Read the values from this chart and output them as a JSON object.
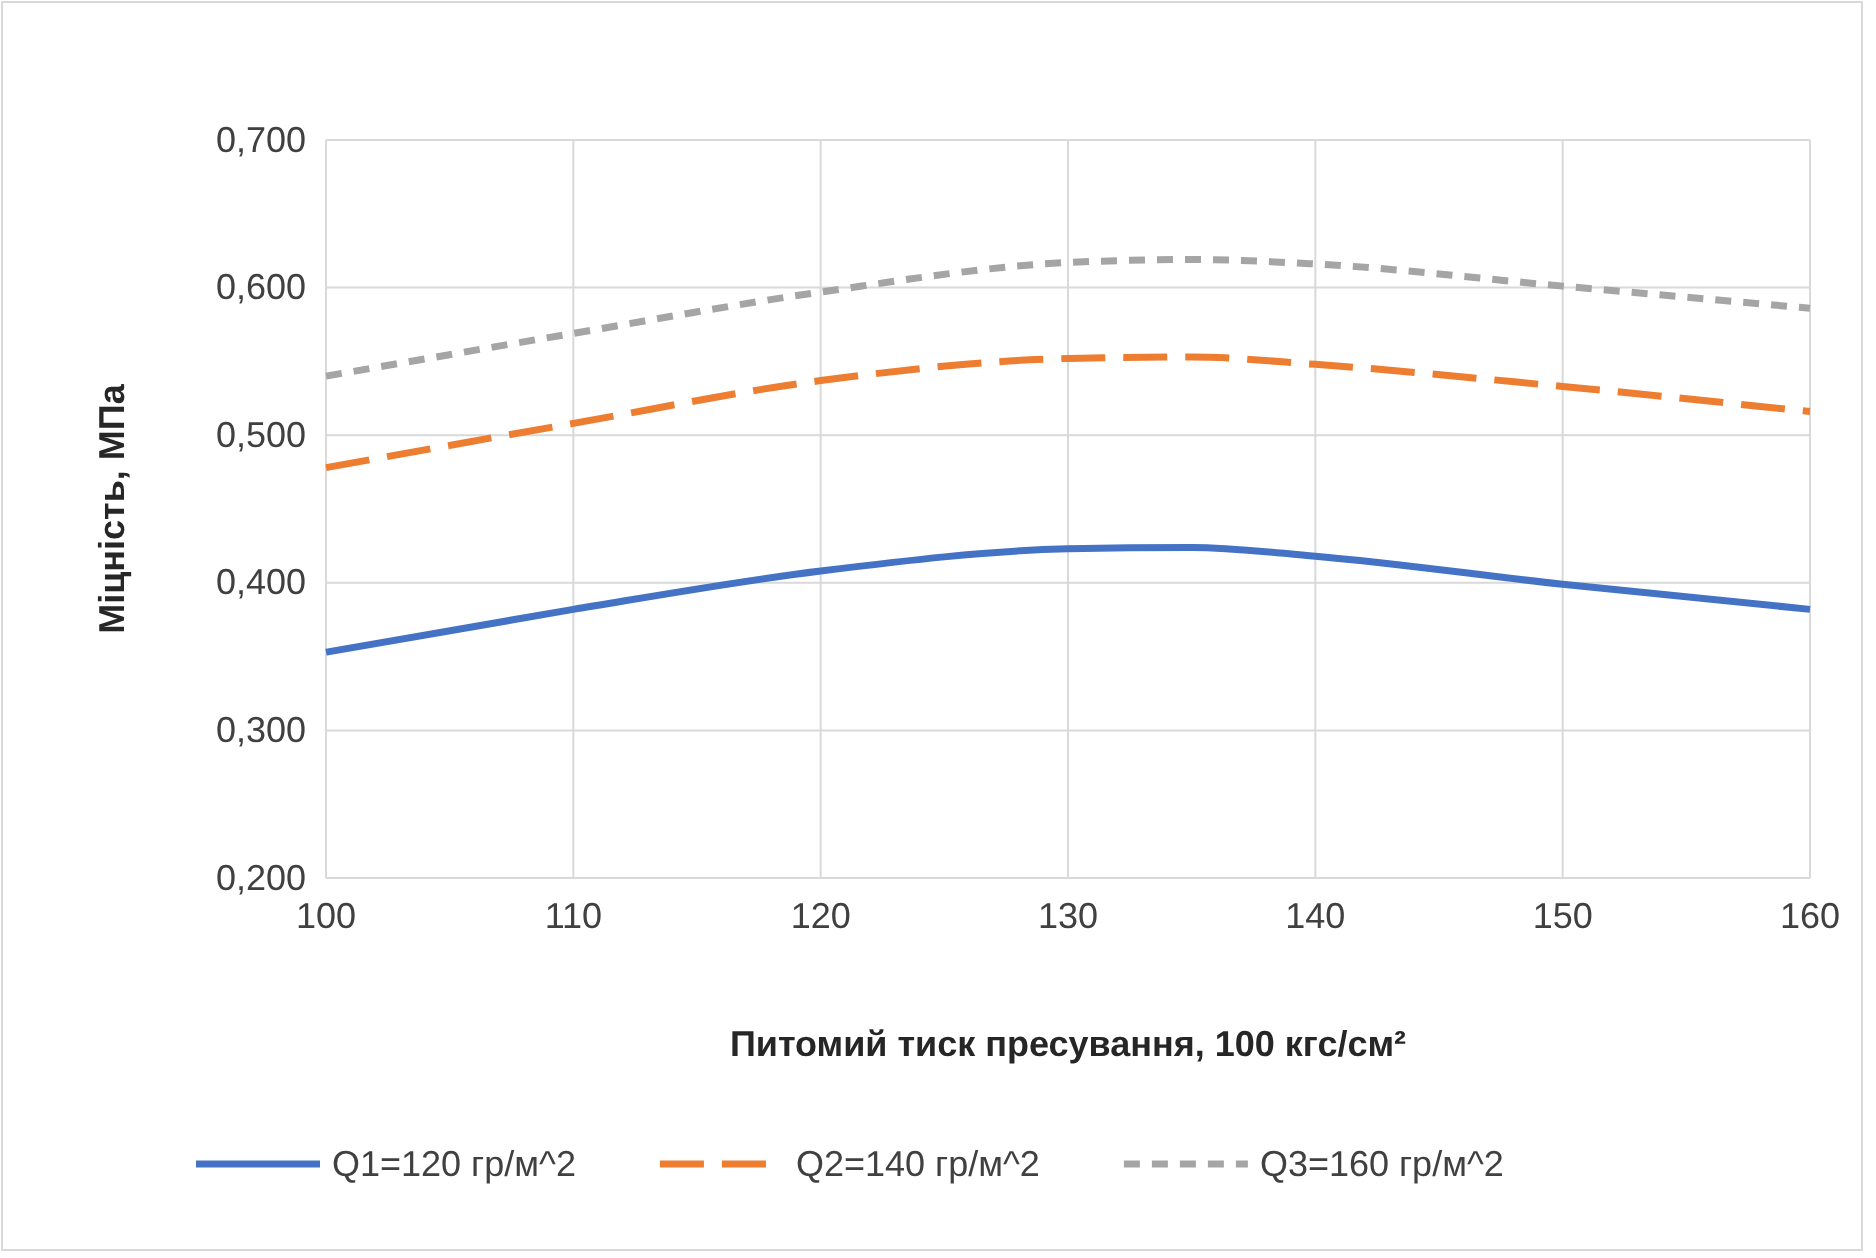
{
  "chart_data": {
    "type": "line",
    "xlabel": "Питомий тиск пресування,  100 кгс/см²",
    "ylabel": "Міцність, МПа",
    "x": [
      100,
      110,
      120,
      130,
      135,
      140,
      150,
      160
    ],
    "series": [
      {
        "name": "Q1=120 гр/м^2",
        "color": "#4472c4",
        "line_style": "solid",
        "values": [
          0.353,
          0.382,
          0.408,
          0.423,
          0.424,
          0.418,
          0.399,
          0.382
        ]
      },
      {
        "name": "Q2=140 гр/м^2",
        "color": "#ed7d31",
        "line_style": "dashed",
        "values": [
          0.478,
          0.508,
          0.537,
          0.552,
          0.553,
          0.548,
          0.533,
          0.516
        ]
      },
      {
        "name": "Q3=160 гр/м^2",
        "color": "#a5a5a5",
        "line_style": "dotted",
        "values": [
          0.54,
          0.569,
          0.597,
          0.617,
          0.619,
          0.616,
          0.601,
          0.586
        ]
      }
    ],
    "xlim": [
      100,
      160
    ],
    "xticks": [
      100,
      110,
      120,
      130,
      140,
      150,
      160
    ],
    "ylim": [
      0.2,
      0.7
    ],
    "yticks": [
      {
        "value": 0.2,
        "label": "0,200"
      },
      {
        "value": 0.3,
        "label": "0,300"
      },
      {
        "value": 0.4,
        "label": "0,400"
      },
      {
        "value": 0.5,
        "label": "0,500"
      },
      {
        "value": 0.6,
        "label": "0,600"
      },
      {
        "value": 0.7,
        "label": "0,700"
      }
    ],
    "grid": true,
    "legend": "bottom",
    "marker": "none"
  }
}
